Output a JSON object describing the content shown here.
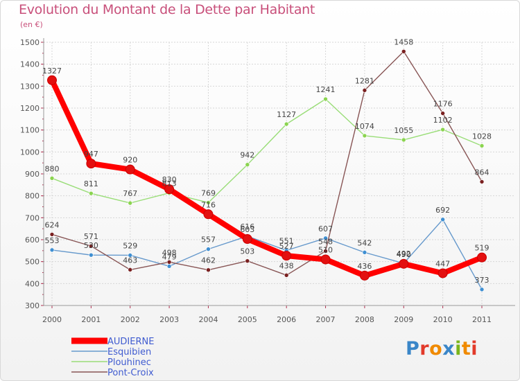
{
  "title": "Evolution du Montant de la Dette par Habitant",
  "subtitle": "(en €)",
  "logo": "Proxiti",
  "colors": {
    "title": "#c84f7a",
    "axis": "#555555",
    "grid": "#d6d6d6",
    "logo_letters": [
      "#3a86c8",
      "#e23a2a",
      "#f08a00",
      "#3a86c8",
      "#7ab51d",
      "#f08a00",
      "#e23a2a"
    ]
  },
  "chart_data": {
    "type": "line",
    "title": "Evolution du Montant de la Dette par Habitant",
    "subtitle": "(en €)",
    "x": [
      "2000",
      "2001",
      "2002",
      "2003",
      "2004",
      "2005",
      "2006",
      "2007",
      "2008",
      "2009",
      "2010",
      "2011"
    ],
    "ylim": [
      300,
      1500
    ],
    "yticks": [
      300,
      400,
      500,
      600,
      700,
      800,
      900,
      1000,
      1100,
      1200,
      1300,
      1400,
      1500
    ],
    "grid": true,
    "legend_position": "bottom-left",
    "series": [
      {
        "name": "AUDIERNE",
        "color": "#ff0000",
        "marker": "#e31010",
        "emphasis": true,
        "values": [
          1327,
          947,
          920,
          830,
          716,
          603,
          527,
          510,
          436,
          490,
          447,
          519
        ],
        "labels": [
          "1327",
          "947",
          "920",
          "830",
          "716",
          "603",
          "527",
          "510",
          "436",
          "490",
          "447",
          "519"
        ]
      },
      {
        "name": "Esquibien",
        "color": "#6699cc",
        "marker": "#3f8fd2",
        "emphasis": false,
        "values": [
          553,
          530,
          529,
          479,
          557,
          616,
          551,
          607,
          542,
          492,
          692,
          373
        ],
        "labels": [
          "553",
          "530",
          "529",
          "479",
          "557",
          "616",
          "551",
          "607",
          "542",
          "492",
          "692",
          "373"
        ]
      },
      {
        "name": "Plouhinec",
        "color": "#99dd77",
        "marker": "#8bd450",
        "emphasis": false,
        "values": [
          880,
          811,
          767,
          813,
          769,
          942,
          1127,
          1241,
          1074,
          1055,
          1102,
          1028
        ],
        "labels": [
          "880",
          "811",
          "767",
          "813",
          "769",
          "942",
          "1127",
          "1241",
          "1074",
          "1055",
          "1102",
          "1028"
        ]
      },
      {
        "name": "Pont-Croix",
        "color": "#885555",
        "marker": "#7a2020",
        "emphasis": false,
        "values": [
          624,
          571,
          463,
          498,
          462,
          503,
          438,
          548,
          1281,
          1458,
          1176,
          864
        ],
        "labels": [
          "624",
          "571",
          "463",
          "498",
          "462",
          "503",
          "438",
          "548",
          "1281",
          "1458",
          "1176",
          "864"
        ]
      }
    ]
  }
}
